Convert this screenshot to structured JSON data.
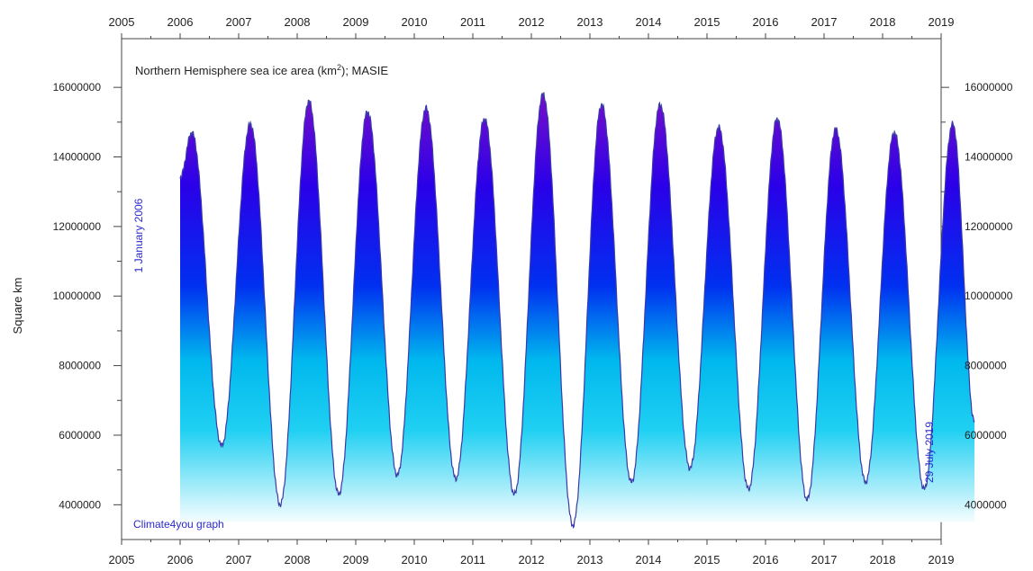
{
  "chart_data": {
    "type": "area",
    "title_main": "Northern Hemisphere sea ice area (km",
    "title_sup": "2",
    "title_tail": "); MASIE",
    "ylabel": "Square km",
    "x_ticks": [
      "2005",
      "2006",
      "2007",
      "2008",
      "2009",
      "2010",
      "2011",
      "2012",
      "2013",
      "2014",
      "2015",
      "2016",
      "2017",
      "2018",
      "2019"
    ],
    "y_ticks": [
      "4000000",
      "6000000",
      "8000000",
      "10000000",
      "12000000",
      "14000000",
      "16000000"
    ],
    "x_range": [
      2005.0,
      2019.0
    ],
    "y_range": [
      3000000,
      17400000
    ],
    "start_annotation": "1 January 2006",
    "end_annotation": "29 July 2019",
    "credit": "Climate4you graph",
    "series": [
      {
        "start_value": 13400000,
        "end_value": 6400000,
        "annual_max": [
          14700000,
          14950000,
          15600000,
          15300000,
          15400000,
          15100000,
          15800000,
          15500000,
          15500000,
          14850000,
          15100000,
          14800000,
          14700000,
          14950000
        ],
        "annual_min": [
          5700000,
          4000000,
          4300000,
          4850000,
          4750000,
          4300000,
          3400000,
          4650000,
          5050000,
          4450000,
          4150000,
          4650000,
          4450000
        ]
      }
    ],
    "colors": {
      "line": "#3a3aa8",
      "fill_top": "#7a10c8",
      "fill_upper": "#0000ee",
      "fill_mid": "#00c4ee",
      "fill_bottom": "#ffffff",
      "text": "#222222",
      "annotation": "#2a2acc"
    }
  }
}
